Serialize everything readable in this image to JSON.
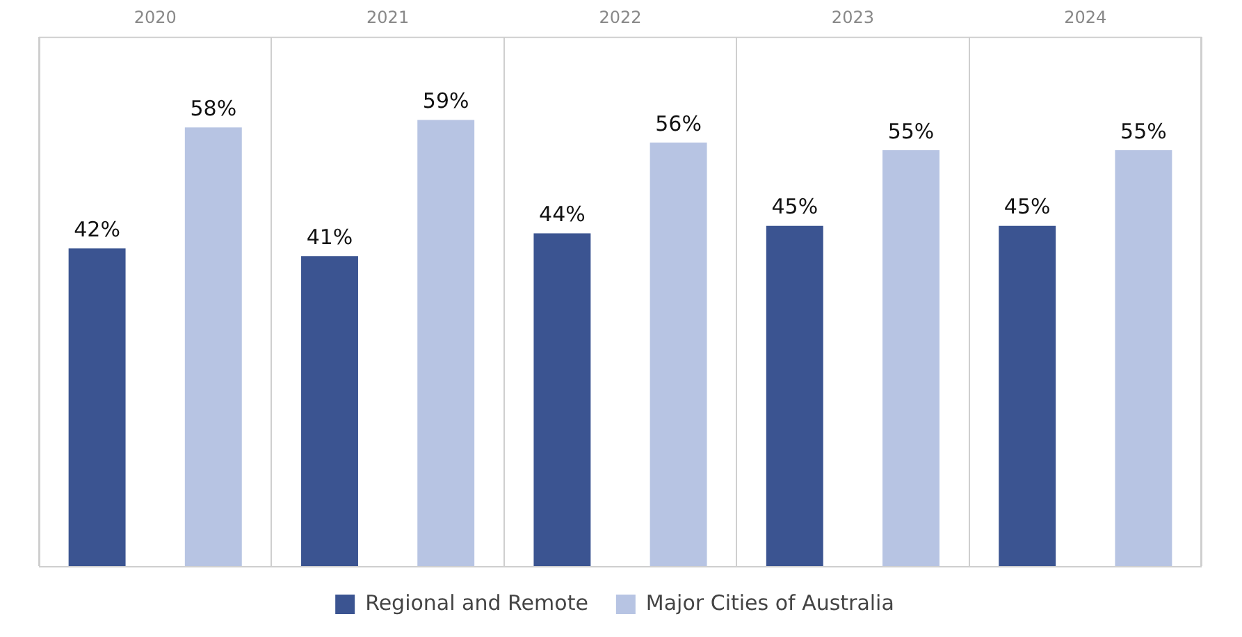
{
  "chart_data": {
    "type": "bar",
    "categories": [
      "2020",
      "2021",
      "2022",
      "2023",
      "2024"
    ],
    "series": [
      {
        "name": "Regional and Remote",
        "color": "#3b5491",
        "values": [
          42,
          41,
          44,
          45,
          45
        ],
        "value_labels": [
          "42%",
          "41%",
          "44%",
          "45%",
          "45%"
        ]
      },
      {
        "name": "Major Cities of Australia",
        "color": "#b7c4e3",
        "values": [
          58,
          59,
          56,
          55,
          55
        ],
        "value_labels": [
          "58%",
          "59%",
          "56%",
          "55%",
          "55%"
        ]
      }
    ],
    "legend": "bottom",
    "grid": "x"
  }
}
